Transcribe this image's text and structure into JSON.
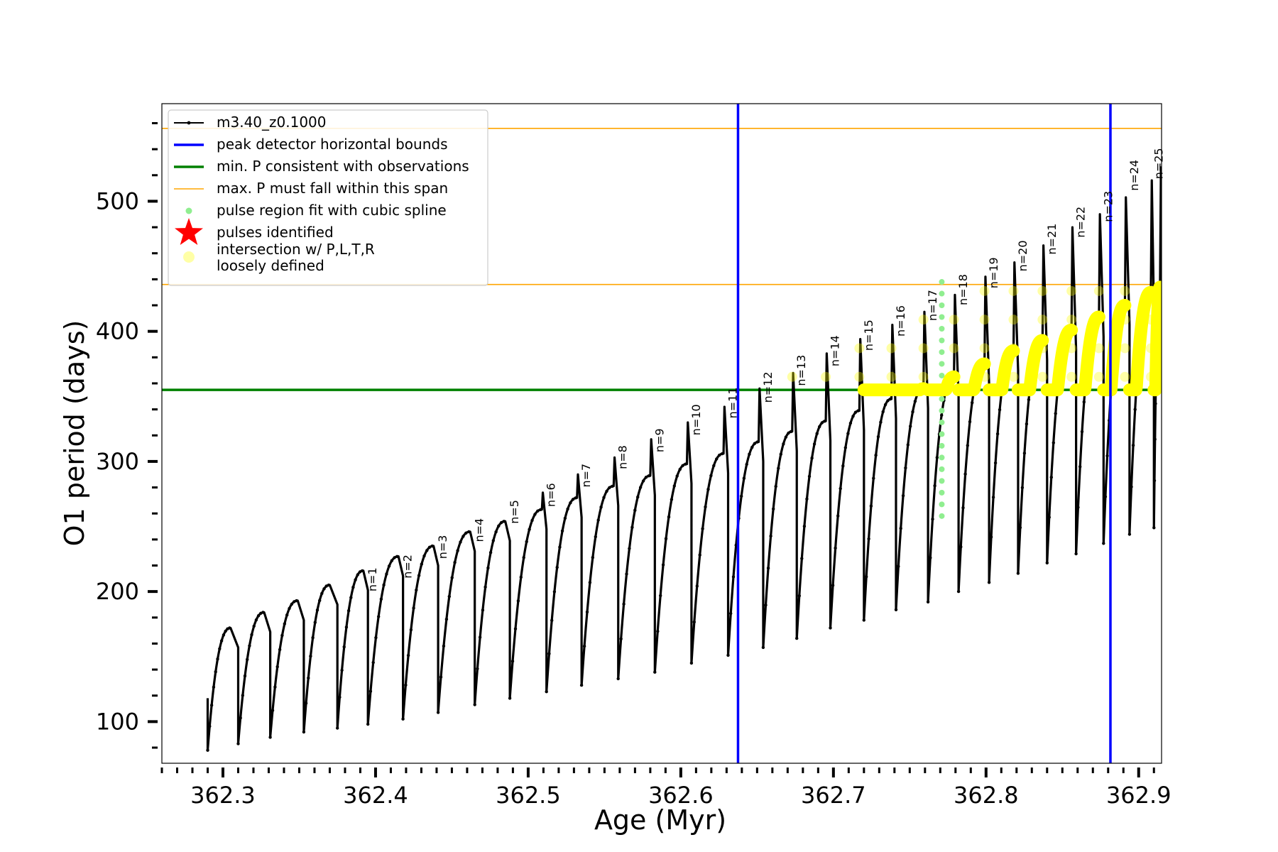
{
  "chart_data": {
    "type": "line",
    "title": "",
    "xlabel": "Age (Myr)",
    "ylabel": "O1 period (days)",
    "xlim": [
      362.26,
      362.915
    ],
    "ylim": [
      68,
      575
    ],
    "x_ticks": [
      "362.3",
      "362.4",
      "362.5",
      "362.6",
      "362.7",
      "362.8",
      "362.9"
    ],
    "x_tick_values": [
      362.3,
      362.4,
      362.5,
      362.6,
      362.7,
      362.8,
      362.9
    ],
    "y_ticks": [
      "100",
      "200",
      "300",
      "400",
      "500"
    ],
    "y_tick_values": [
      100,
      200,
      300,
      400,
      500
    ],
    "series": [
      {
        "name": "m3.40_z0.1000",
        "color": "#000000",
        "pulses": [
          {
            "x_start": 362.29,
            "x_peak": 362.305,
            "p_min": 78,
            "p_start": 100,
            "p_peak": 172,
            "spike": 0
          },
          {
            "x_start": 362.31,
            "x_peak": 362.327,
            "p_min": 83,
            "p_start": 102,
            "p_peak": 184,
            "spike": 0
          },
          {
            "x_start": 362.331,
            "x_peak": 362.349,
            "p_min": 88,
            "p_start": 106,
            "p_peak": 193,
            "spike": 0
          },
          {
            "x_start": 362.353,
            "x_peak": 362.37,
            "p_min": 92,
            "p_start": 110,
            "p_peak": 205,
            "spike": 0
          },
          {
            "x_start": 362.375,
            "x_peak": 362.392,
            "p_min": 95,
            "p_start": 114,
            "p_peak": 216,
            "spike": 0
          },
          {
            "x_start": 362.395,
            "x_peak": 362.415,
            "p_min": 98,
            "p_start": 117,
            "p_peak": 227,
            "spike": 0
          },
          {
            "x_start": 362.418,
            "x_peak": 362.438,
            "p_min": 102,
            "p_start": 120,
            "p_peak": 235,
            "spike": 0
          },
          {
            "x_start": 362.441,
            "x_peak": 362.462,
            "p_min": 107,
            "p_start": 124,
            "p_peak": 246,
            "spike": 0
          },
          {
            "x_start": 362.465,
            "x_peak": 362.485,
            "p_min": 113,
            "p_start": 128,
            "p_peak": 254,
            "spike": 0
          },
          {
            "x_start": 362.488,
            "x_peak": 362.509,
            "p_min": 118,
            "p_start": 131,
            "p_peak": 263,
            "spike": 276
          },
          {
            "x_start": 362.512,
            "x_peak": 362.532,
            "p_min": 123,
            "p_start": 135,
            "p_peak": 272,
            "spike": 290
          },
          {
            "x_start": 362.535,
            "x_peak": 362.556,
            "p_min": 128,
            "p_start": 139,
            "p_peak": 281,
            "spike": 303
          },
          {
            "x_start": 362.559,
            "x_peak": 362.58,
            "p_min": 133,
            "p_start": 143,
            "p_peak": 289,
            "spike": 317
          },
          {
            "x_start": 362.583,
            "x_peak": 362.604,
            "p_min": 138,
            "p_start": 147,
            "p_peak": 298,
            "spike": 330
          },
          {
            "x_start": 362.607,
            "x_peak": 362.628,
            "p_min": 145,
            "p_start": 151,
            "p_peak": 306,
            "spike": 342
          },
          {
            "x_start": 362.631,
            "x_peak": 362.651,
            "p_min": 151,
            "p_start": 155,
            "p_peak": 315,
            "spike": 356
          },
          {
            "x_start": 362.654,
            "x_peak": 362.673,
            "p_min": 157,
            "p_start": 160,
            "p_peak": 323,
            "spike": 368
          },
          {
            "x_start": 362.676,
            "x_peak": 362.695,
            "p_min": 164,
            "p_start": 164,
            "p_peak": 331,
            "spike": 383
          },
          {
            "x_start": 362.698,
            "x_peak": 362.717,
            "p_min": 172,
            "p_start": 169,
            "p_peak": 339,
            "spike": 394
          },
          {
            "x_start": 362.72,
            "x_peak": 362.738,
            "p_min": 178,
            "p_start": 174,
            "p_peak": 348,
            "spike": 405
          },
          {
            "x_start": 362.741,
            "x_peak": 362.759,
            "p_min": 186,
            "p_start": 180,
            "p_peak": 356,
            "spike": 415
          },
          {
            "x_start": 362.762,
            "x_peak": 362.779,
            "p_min": 192,
            "p_start": 186,
            "p_peak": 365,
            "spike": 428
          },
          {
            "x_start": 362.782,
            "x_peak": 362.799,
            "p_min": 200,
            "p_start": 193,
            "p_peak": 375,
            "spike": 442
          },
          {
            "x_start": 362.802,
            "x_peak": 362.818,
            "p_min": 207,
            "p_start": 200,
            "p_peak": 385,
            "spike": 453
          },
          {
            "x_start": 362.821,
            "x_peak": 362.837,
            "p_min": 214,
            "p_start": 207,
            "p_peak": 393,
            "spike": 466
          },
          {
            "x_start": 362.84,
            "x_peak": 362.856,
            "p_min": 222,
            "p_start": 214,
            "p_peak": 401,
            "spike": 480
          },
          {
            "x_start": 362.859,
            "x_peak": 362.874,
            "p_min": 229,
            "p_start": 221,
            "p_peak": 411,
            "spike": 490
          },
          {
            "x_start": 362.877,
            "x_peak": 362.891,
            "p_min": 237,
            "p_start": 228,
            "p_peak": 420,
            "spike": 503
          },
          {
            "x_start": 362.894,
            "x_peak": 362.908,
            "p_min": 244,
            "p_start": 235,
            "p_peak": 430,
            "spike": 516
          },
          {
            "x_start": 362.91,
            "x_peak": 362.914,
            "p_min": 249,
            "p_start": 240,
            "p_peak": 434,
            "spike": 526
          }
        ]
      },
      {
        "name": "peak detector horizontal bounds",
        "color": "#0000ff",
        "x": [
          362.6375,
          362.8815
        ]
      },
      {
        "name": "min. P consistent with observations",
        "color": "#008000",
        "y": 355
      },
      {
        "name": "max. P must fall within this span",
        "color": "#ffa500",
        "y": [
          436,
          556
        ]
      },
      {
        "name": "pulse region fit with cubic spline",
        "color": "#90ee90",
        "x": 362.771,
        "y_range": [
          258,
          442
        ]
      },
      {
        "name": "pulses identified",
        "color": "#ff0000"
      },
      {
        "name": "intersection w/ P,L,T,R\nloosely defined",
        "color": "#ffff00"
      }
    ],
    "annotations": [
      {
        "text": "n=1",
        "x": 362.395,
        "y": 200
      },
      {
        "text": "n=2",
        "x": 362.418,
        "y": 210
      },
      {
        "text": "n=3",
        "x": 362.441,
        "y": 225
      },
      {
        "text": "n=4",
        "x": 362.465,
        "y": 238
      },
      {
        "text": "n=5",
        "x": 362.488,
        "y": 252
      },
      {
        "text": "n=6",
        "x": 362.512,
        "y": 265
      },
      {
        "text": "n=7",
        "x": 362.535,
        "y": 280
      },
      {
        "text": "n=8",
        "x": 362.559,
        "y": 294
      },
      {
        "text": "n=9",
        "x": 362.583,
        "y": 307
      },
      {
        "text": "n=10",
        "x": 362.607,
        "y": 320
      },
      {
        "text": "n=11",
        "x": 362.631,
        "y": 333
      },
      {
        "text": "n=12",
        "x": 362.654,
        "y": 345
      },
      {
        "text": "n=13",
        "x": 362.676,
        "y": 358
      },
      {
        "text": "n=14",
        "x": 362.698,
        "y": 373
      },
      {
        "text": "n=15",
        "x": 362.72,
        "y": 385
      },
      {
        "text": "n=16",
        "x": 362.741,
        "y": 396
      },
      {
        "text": "n=17",
        "x": 362.762,
        "y": 408
      },
      {
        "text": "n=18",
        "x": 362.782,
        "y": 420
      },
      {
        "text": "n=19",
        "x": 362.802,
        "y": 433
      },
      {
        "text": "n=20",
        "x": 362.821,
        "y": 446
      },
      {
        "text": "n=21",
        "x": 362.84,
        "y": 459
      },
      {
        "text": "n=22",
        "x": 362.859,
        "y": 472
      },
      {
        "text": "n=23",
        "x": 362.877,
        "y": 484
      },
      {
        "text": "n=24",
        "x": 362.894,
        "y": 508
      },
      {
        "text": "n=25",
        "x": 362.91,
        "y": 517
      }
    ],
    "grid": false,
    "legend_position": "top-left"
  }
}
